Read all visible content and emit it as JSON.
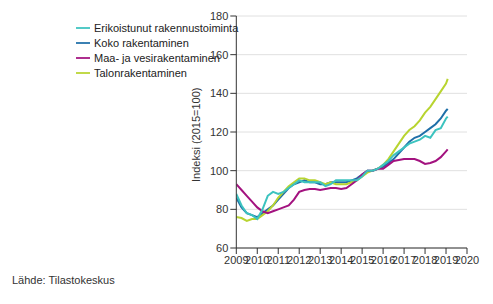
{
  "chart_data": {
    "type": "line",
    "y_label": "Indeksi (2015=100)",
    "source": "Lähde: Tilastokeskus",
    "x": [
      2009,
      2009.25,
      2009.5,
      2009.75,
      2010,
      2010.25,
      2010.5,
      2010.75,
      2011,
      2011.25,
      2011.5,
      2011.75,
      2012,
      2012.25,
      2012.5,
      2012.75,
      2013,
      2013.25,
      2013.5,
      2013.75,
      2014,
      2014.25,
      2014.5,
      2014.75,
      2015,
      2015.25,
      2015.5,
      2015.75,
      2016,
      2016.25,
      2016.5,
      2016.75,
      2017,
      2017.25,
      2017.5,
      2017.75,
      2018,
      2018.25,
      2018.5,
      2018.75,
      2019,
      2019.08
    ],
    "series": [
      {
        "name": "Koko rakentaminen",
        "color": "#1f6fa8",
        "values": [
          86,
          81,
          78,
          77,
          76,
          78,
          80,
          82,
          85,
          88,
          91,
          93,
          94,
          95,
          94,
          94,
          93,
          93,
          94,
          94,
          94,
          94,
          95,
          96,
          98,
          100,
          100,
          101,
          102,
          104,
          106,
          109,
          112,
          115,
          117,
          118,
          120,
          122,
          124,
          127,
          131,
          132
        ]
      },
      {
        "name": "Talonrakentaminen",
        "color": "#b8d430",
        "values": [
          76,
          75.5,
          74,
          75,
          75,
          77,
          79,
          82,
          86,
          89,
          92,
          94,
          96,
          96,
          95,
          95,
          94,
          93,
          94,
          93,
          93,
          93,
          94,
          95,
          97,
          99,
          100,
          101,
          103,
          106,
          110,
          114,
          118,
          121,
          123,
          126,
          130,
          133,
          137,
          141,
          145,
          147.5
        ]
      },
      {
        "name": "Maa- ja vesirakentaminen",
        "color": "#a3127f",
        "values": [
          93,
          90,
          87,
          84,
          81,
          79,
          78,
          79,
          80,
          81,
          82,
          85,
          89,
          90,
          90.5,
          90.5,
          90,
          90.5,
          91,
          91,
          90.5,
          91,
          93,
          95,
          98,
          100,
          100,
          101,
          101,
          103,
          105,
          105.5,
          106,
          106,
          106,
          105,
          103.5,
          104,
          105,
          107,
          110,
          111
        ]
      },
      {
        "name": "Erikoistunut rakennustoiminta",
        "color": "#3cc3bf",
        "values": [
          88,
          82,
          78,
          77,
          75,
          80,
          87,
          89,
          88,
          89,
          91,
          93,
          95,
          94,
          94,
          94,
          94,
          92,
          93,
          95,
          95,
          95,
          95,
          95,
          97,
          100,
          100,
          101,
          103,
          105,
          108,
          110,
          112,
          114,
          115,
          116,
          118,
          117,
          121,
          122,
          127,
          128
        ]
      }
    ],
    "xlim": [
      2009,
      2020
    ],
    "xticks": [
      2009,
      2010,
      2011,
      2012,
      2013,
      2014,
      2015,
      2016,
      2017,
      2018,
      2019,
      2020
    ],
    "ylim": [
      60,
      180
    ],
    "yticks": [
      60,
      80,
      100,
      120,
      140,
      160,
      180
    ],
    "grid": true,
    "legend": "top-left"
  }
}
